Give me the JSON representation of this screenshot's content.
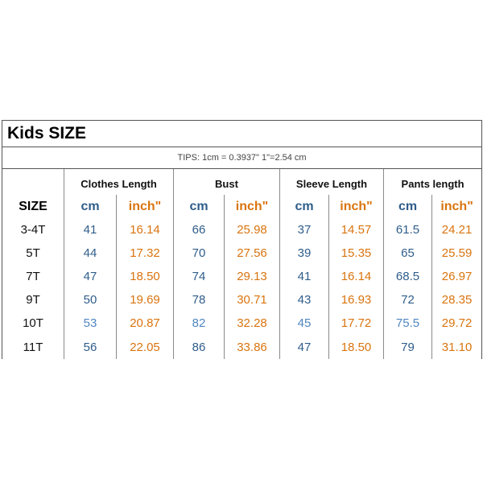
{
  "title": "Kids SIZE",
  "tips": "TIPS: 1cm = 0.3937\"   1\"=2.54 cm",
  "size_header": "SIZE",
  "groups": [
    "Clothes Length",
    "Bust",
    "Sleeve Length",
    "Pants length"
  ],
  "units": {
    "cm": "cm",
    "inch": "inch\""
  },
  "colors": {
    "cm": "#2f5d8a",
    "inch": "#d9740f",
    "border": "#555555"
  },
  "rows": [
    {
      "size": "3-4T",
      "values": [
        "41",
        "16.14",
        "66",
        "25.98",
        "37",
        "14.57",
        "61.5",
        "24.21"
      ]
    },
    {
      "size": "5T",
      "values": [
        "44",
        "17.32",
        "70",
        "27.56",
        "39",
        "15.35",
        "65",
        "25.59"
      ]
    },
    {
      "size": "7T",
      "values": [
        "47",
        "18.50",
        "74",
        "29.13",
        "41",
        "16.14",
        "68.5",
        "26.97"
      ]
    },
    {
      "size": "9T",
      "values": [
        "50",
        "19.69",
        "78",
        "30.71",
        "43",
        "16.93",
        "72",
        "28.35"
      ]
    },
    {
      "size": "10T",
      "values": [
        "53",
        "20.87",
        "82",
        "32.28",
        "45",
        "17.72",
        "75.5",
        "29.72"
      ]
    },
    {
      "size": "11T",
      "values": [
        "56",
        "22.05",
        "86",
        "33.86",
        "47",
        "18.50",
        "79",
        "31.10"
      ]
    }
  ]
}
